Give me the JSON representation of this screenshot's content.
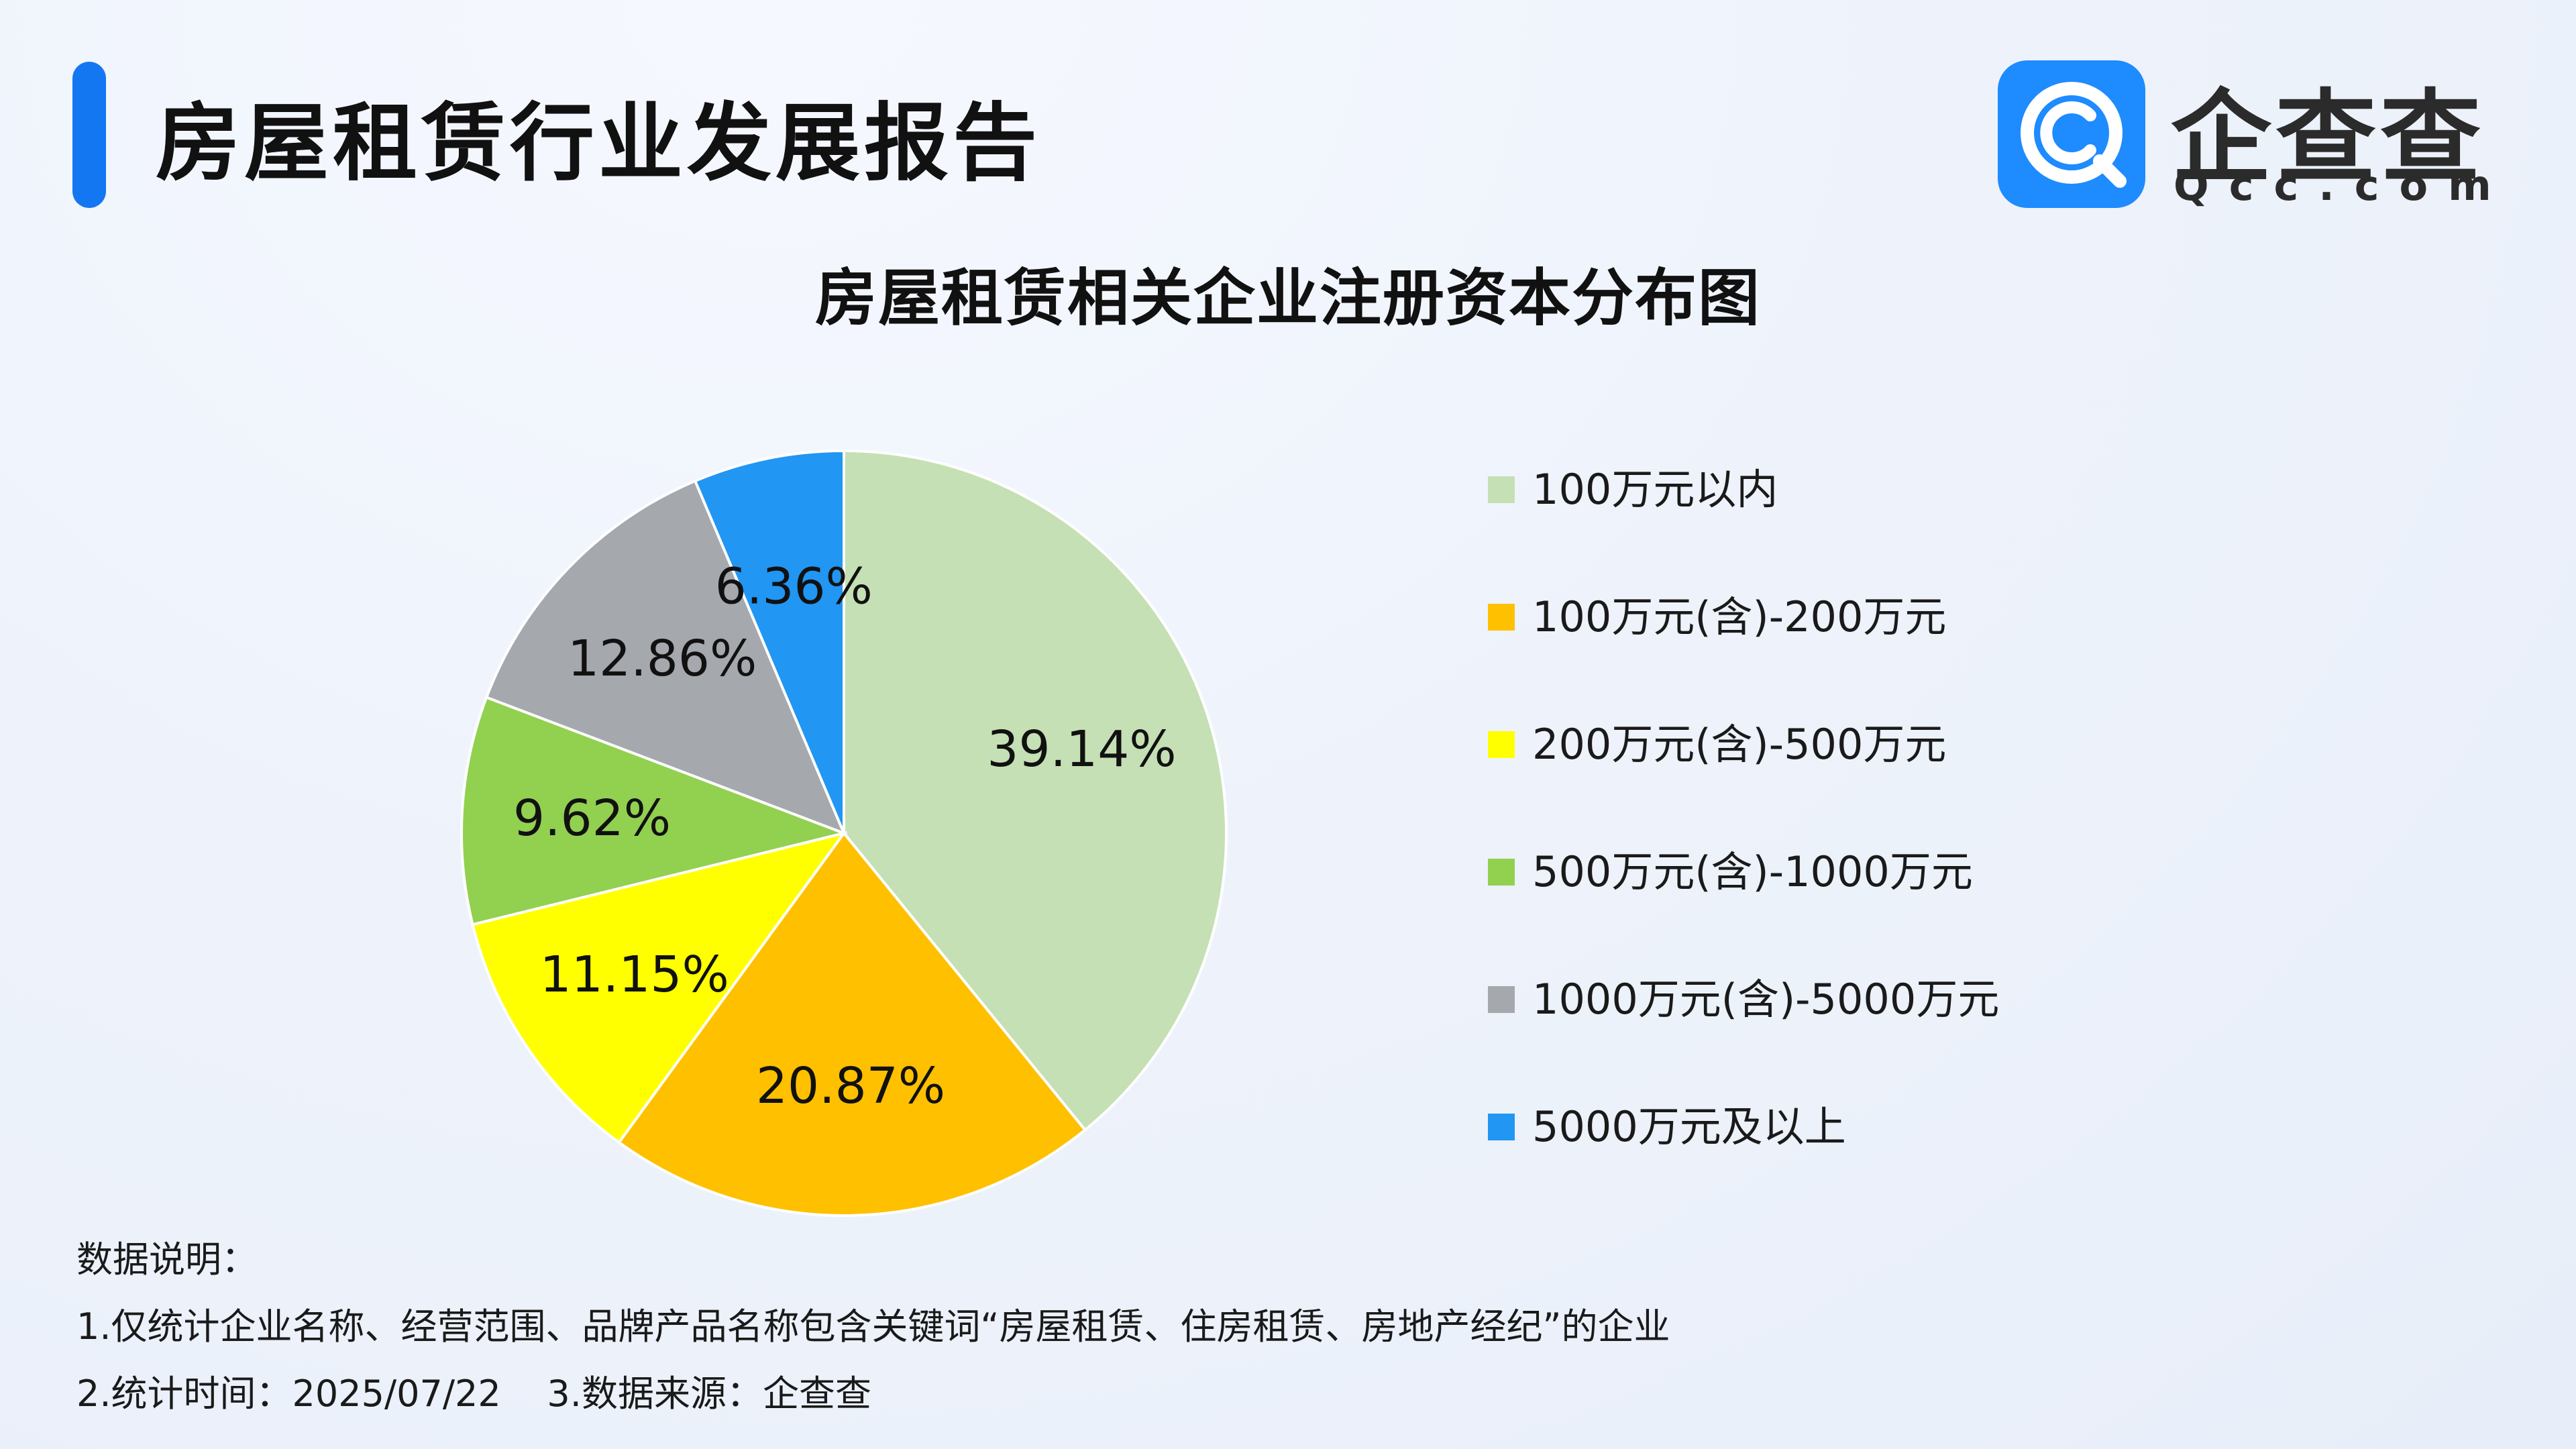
{
  "header": {
    "report_title": "房屋租赁行业发展报告",
    "logo_name": "企查查",
    "logo_domain": "Qcc.com",
    "accent_color": "#1477f2"
  },
  "chart_data": {
    "type": "pie",
    "title": "房屋租赁相关企业注册资本分布图",
    "start_angle": "12 o'clock",
    "direction": "clockwise",
    "legend_position": "right",
    "slices": [
      {
        "label": "100万元以内",
        "value": 39.14,
        "value_text": "39.14%",
        "color": "#c5e0b4"
      },
      {
        "label": "100万元(含)-200万元",
        "value": 20.87,
        "value_text": "20.87%",
        "color": "#ffc000"
      },
      {
        "label": "200万元(含)-500万元",
        "value": 11.15,
        "value_text": "11.15%",
        "color": "#ffff00"
      },
      {
        "label": "500万元(含)-1000万元",
        "value": 9.62,
        "value_text": "9.62%",
        "color": "#92d050"
      },
      {
        "label": "1000万元(含)-5000万元",
        "value": 12.86,
        "value_text": "12.86%",
        "color": "#a5a8ad"
      },
      {
        "label": "5000万元及以上",
        "value": 6.36,
        "value_text": "6.36%",
        "color": "#2196f3"
      }
    ]
  },
  "notes": {
    "heading": "数据说明：",
    "line1": "1.仅统计企业名称、经营范围、品牌产品名称包含关键词“房屋租赁、住房租赁、房地产经纪”的企业",
    "line2": "2.统计时间：2025/07/22    3.数据来源：企查查"
  }
}
